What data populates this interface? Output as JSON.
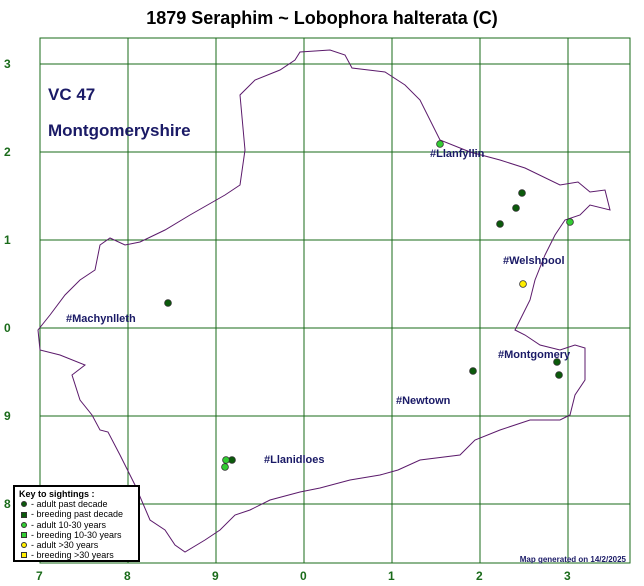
{
  "title": "1879 Seraphim ~ Lobophora halterata (C)",
  "vice_county": {
    "code": "VC 47",
    "name": "Montgomeryshire"
  },
  "grid": {
    "x_labels": [
      "7",
      "8",
      "9",
      "0",
      "1",
      "2",
      "3"
    ],
    "y_labels": [
      "3",
      "2",
      "1",
      "0",
      "9",
      "8"
    ]
  },
  "towns": [
    {
      "id": "llanfyllin",
      "label": "#Llanfyllin"
    },
    {
      "id": "welshpool",
      "label": "#Welshpool"
    },
    {
      "id": "machynlleth",
      "label": "#Machynlleth"
    },
    {
      "id": "montgomery",
      "label": "#Montgomery"
    },
    {
      "id": "newtown",
      "label": "#Newtown"
    },
    {
      "id": "llanidloes",
      "label": "#Llanidloes"
    }
  ],
  "legend": {
    "title": "Key to sightings :",
    "items": [
      {
        "label": "- adult past decade",
        "shape": "circle",
        "color": "#0b5a0b"
      },
      {
        "label": "- breeding past decade",
        "shape": "square",
        "color": "#0b5a0b"
      },
      {
        "label": "- adult 10-30 years",
        "shape": "circle",
        "color": "#33cc33"
      },
      {
        "label": "- breeding 10-30 years",
        "shape": "square",
        "color": "#33cc33"
      },
      {
        "label": "- adult >30 years",
        "shape": "circle",
        "color": "#ffee00"
      },
      {
        "label": "- breeding >30 years",
        "shape": "square",
        "color": "#ffee00"
      }
    ]
  },
  "sightings": [
    {
      "category": "adult past decade"
    },
    {
      "category": "adult past decade"
    },
    {
      "category": "adult past decade"
    },
    {
      "category": "adult past decade"
    },
    {
      "category": "adult past decade"
    },
    {
      "category": "adult past decade"
    },
    {
      "category": "adult past decade"
    },
    {
      "category": "adult past decade"
    },
    {
      "category": "adult 10-30 years"
    },
    {
      "category": "adult 10-30 years"
    },
    {
      "category": "adult 10-30 years"
    },
    {
      "category": "adult 10-30 years"
    },
    {
      "category": "adult >30 years"
    }
  ],
  "footer": "Map generated on 14/2/2025",
  "colors": {
    "grid": "#1a6b1a",
    "boundary": "#5b1a6b",
    "text": "#1a1a66"
  }
}
